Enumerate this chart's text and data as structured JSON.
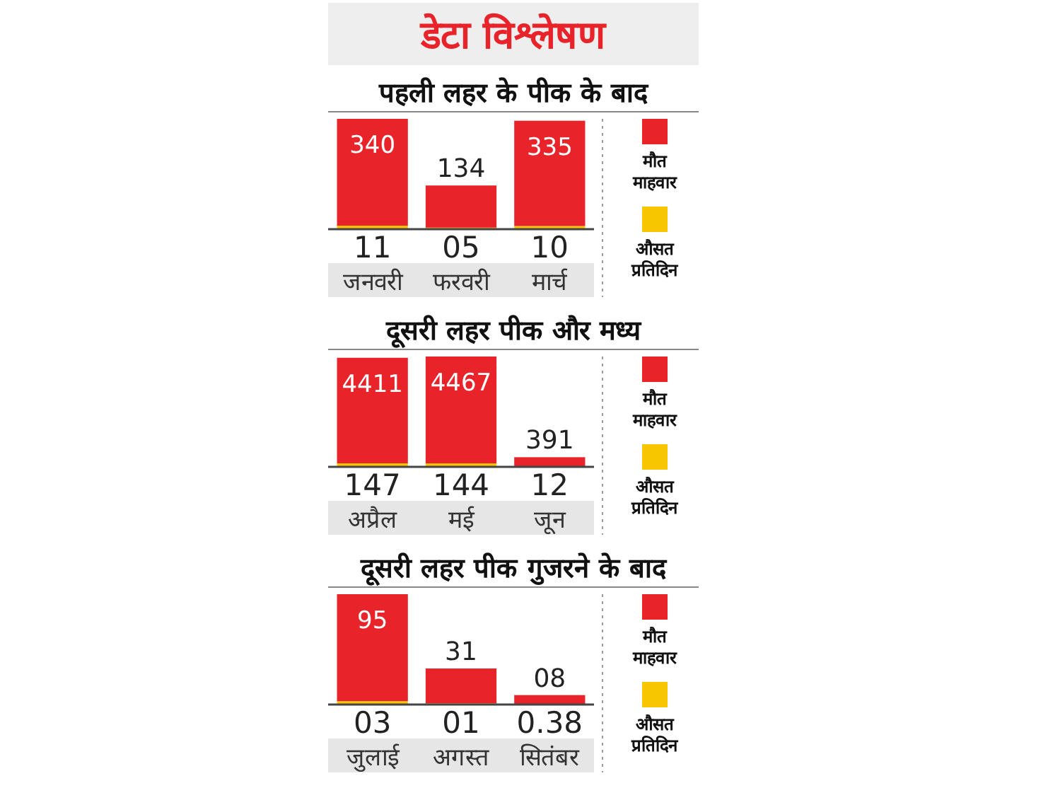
{
  "chart_data": [
    {
      "type": "bar",
      "title": "डेटा विश्लेषण",
      "subtitle": "पहली लहर के पीक के बाद",
      "categories": [
        "जनवरी",
        "फरवरी",
        "मार्च"
      ],
      "stacked": true,
      "legend": "right",
      "series": [
        {
          "name": "औसत प्रतिदिन",
          "color": "#f7c600",
          "values": [
            11,
            5,
            10
          ],
          "value_labels": [
            "11",
            "05",
            "10"
          ]
        },
        {
          "name": "मौत माहवार",
          "color": "#e8232a",
          "values": [
            340,
            134,
            335
          ],
          "value_labels": [
            "340",
            "134",
            "335"
          ]
        }
      ]
    },
    {
      "type": "bar",
      "title": "दूसरी लहर पीक और मध्य",
      "categories": [
        "अप्रैल",
        "मई",
        "जून"
      ],
      "stacked": true,
      "legend": "right",
      "series": [
        {
          "name": "औसत प्रतिदिन",
          "color": "#f7c600",
          "values": [
            147,
            144,
            12
          ],
          "value_labels": [
            "147",
            "144",
            "12"
          ]
        },
        {
          "name": "मौत माहवार",
          "color": "#e8232a",
          "values": [
            4411,
            4467,
            391
          ],
          "value_labels": [
            "4411",
            "4467",
            "391"
          ]
        }
      ]
    },
    {
      "type": "bar",
      "title": "दूसरी लहर पीक गुजरने के बाद",
      "categories": [
        "जुलाई",
        "अगस्त",
        "सितंबर"
      ],
      "stacked": true,
      "legend": "right",
      "series": [
        {
          "name": "औसत प्रतिदिन",
          "color": "#f7c600",
          "values": [
            3,
            1,
            0.38
          ],
          "value_labels": [
            "03",
            "01",
            "0.38"
          ]
        },
        {
          "name": "मौत माहवार",
          "color": "#e8232a",
          "values": [
            95,
            31,
            8
          ],
          "value_labels": [
            "95",
            "31",
            "08"
          ]
        }
      ]
    }
  ]
}
